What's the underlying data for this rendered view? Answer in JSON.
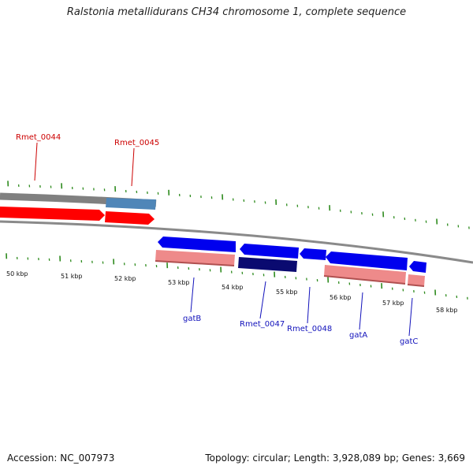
{
  "title": "Ralstonia metallidurans CH34 chromosome 1, complete sequence",
  "footer": {
    "accession": "Accession: NC_007973",
    "summary": "Topology: circular; Length: 3,928,089 bp; Genes: 3,669"
  },
  "colors": {
    "forward_label": "#cc0000",
    "reverse_label": "#1111bb",
    "tick": "#2e8b1e",
    "forward_arrow": "#ff0000",
    "reverse_arrow": "#0000ee",
    "pink_bar": "#ee8a8a",
    "grey_track": "#777777",
    "steel_blue": "#4f86b8",
    "navy": "#0a0a70"
  },
  "kbp_labels": [
    "50 kbp",
    "51 kbp",
    "52 kbp",
    "53 kbp",
    "54 kbp",
    "55 kbp",
    "56 kbp",
    "57 kbp",
    "58 kbp"
  ],
  "genes": [
    {
      "name": "Rmet_0044",
      "strand": "forward"
    },
    {
      "name": "Rmet_0045",
      "strand": "forward"
    },
    {
      "name": "gatB",
      "strand": "reverse"
    },
    {
      "name": "Rmet_0047",
      "strand": "reverse"
    },
    {
      "name": "Rmet_0048",
      "strand": "reverse"
    },
    {
      "name": "gatA",
      "strand": "reverse"
    },
    {
      "name": "gatC",
      "strand": "reverse"
    }
  ]
}
